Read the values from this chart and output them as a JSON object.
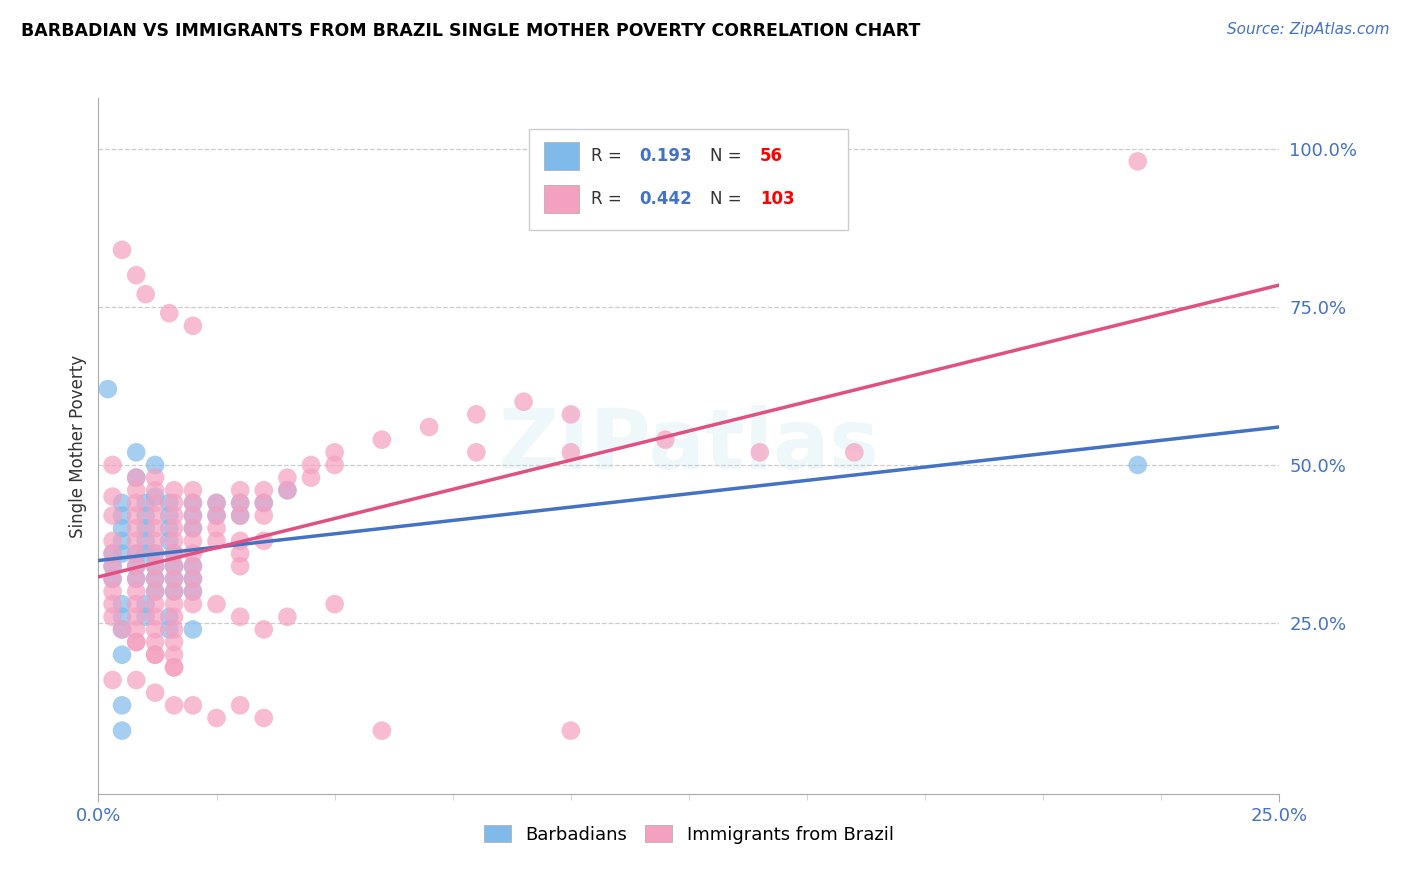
{
  "title": "BARBADIAN VS IMMIGRANTS FROM BRAZIL SINGLE MOTHER POVERTY CORRELATION CHART",
  "source": "Source: ZipAtlas.com",
  "ylabel": "Single Mother Poverty",
  "xlim": [
    0.0,
    0.25
  ],
  "ylim": [
    -0.02,
    1.08
  ],
  "ytick_positions": [
    0.25,
    0.5,
    0.75,
    1.0
  ],
  "ytick_labels": [
    "25.0%",
    "50.0%",
    "75.0%",
    "100.0%"
  ],
  "barbadians_color": "#7FBAEB",
  "barbadians_edge": "#7FBAEB",
  "brazil_color": "#F4A0C0",
  "brazil_edge": "#F4A0C0",
  "barbadians_line_color": "#4472C4",
  "brazil_line_color": "#E05080",
  "barbadians_R": 0.193,
  "barbadians_N": 56,
  "brazil_R": 0.442,
  "brazil_N": 103,
  "watermark": "ZIPatlas",
  "background_color": "#ffffff",
  "legend_R_color": "#4472C4",
  "legend_N_color": "#FF0000",
  "legend_text_color": "#333333",
  "barbadians_scatter": [
    [
      0.002,
      0.62
    ],
    [
      0.008,
      0.52
    ],
    [
      0.008,
      0.48
    ],
    [
      0.012,
      0.5
    ],
    [
      0.012,
      0.45
    ],
    [
      0.005,
      0.44
    ],
    [
      0.005,
      0.42
    ],
    [
      0.005,
      0.4
    ],
    [
      0.005,
      0.38
    ],
    [
      0.005,
      0.36
    ],
    [
      0.01,
      0.44
    ],
    [
      0.01,
      0.42
    ],
    [
      0.01,
      0.4
    ],
    [
      0.01,
      0.38
    ],
    [
      0.01,
      0.36
    ],
    [
      0.015,
      0.44
    ],
    [
      0.015,
      0.42
    ],
    [
      0.015,
      0.4
    ],
    [
      0.015,
      0.38
    ],
    [
      0.02,
      0.44
    ],
    [
      0.02,
      0.42
    ],
    [
      0.02,
      0.4
    ],
    [
      0.025,
      0.44
    ],
    [
      0.025,
      0.42
    ],
    [
      0.03,
      0.44
    ],
    [
      0.03,
      0.42
    ],
    [
      0.035,
      0.44
    ],
    [
      0.04,
      0.46
    ],
    [
      0.003,
      0.36
    ],
    [
      0.003,
      0.34
    ],
    [
      0.003,
      0.32
    ],
    [
      0.008,
      0.36
    ],
    [
      0.008,
      0.34
    ],
    [
      0.008,
      0.32
    ],
    [
      0.012,
      0.36
    ],
    [
      0.012,
      0.34
    ],
    [
      0.012,
      0.32
    ],
    [
      0.012,
      0.3
    ],
    [
      0.016,
      0.36
    ],
    [
      0.016,
      0.34
    ],
    [
      0.016,
      0.32
    ],
    [
      0.016,
      0.3
    ],
    [
      0.02,
      0.34
    ],
    [
      0.02,
      0.32
    ],
    [
      0.02,
      0.3
    ],
    [
      0.005,
      0.28
    ],
    [
      0.005,
      0.26
    ],
    [
      0.005,
      0.24
    ],
    [
      0.01,
      0.28
    ],
    [
      0.01,
      0.26
    ],
    [
      0.015,
      0.26
    ],
    [
      0.015,
      0.24
    ],
    [
      0.02,
      0.24
    ],
    [
      0.005,
      0.2
    ],
    [
      0.005,
      0.12
    ],
    [
      0.005,
      0.08
    ],
    [
      0.22,
      0.5
    ]
  ],
  "brazil_scatter": [
    [
      0.003,
      0.5
    ],
    [
      0.003,
      0.45
    ],
    [
      0.003,
      0.42
    ],
    [
      0.003,
      0.38
    ],
    [
      0.003,
      0.36
    ],
    [
      0.003,
      0.34
    ],
    [
      0.003,
      0.32
    ],
    [
      0.003,
      0.3
    ],
    [
      0.003,
      0.28
    ],
    [
      0.008,
      0.48
    ],
    [
      0.008,
      0.46
    ],
    [
      0.008,
      0.44
    ],
    [
      0.008,
      0.42
    ],
    [
      0.008,
      0.4
    ],
    [
      0.008,
      0.38
    ],
    [
      0.008,
      0.36
    ],
    [
      0.008,
      0.34
    ],
    [
      0.008,
      0.32
    ],
    [
      0.008,
      0.3
    ],
    [
      0.008,
      0.28
    ],
    [
      0.008,
      0.26
    ],
    [
      0.008,
      0.24
    ],
    [
      0.008,
      0.22
    ],
    [
      0.012,
      0.48
    ],
    [
      0.012,
      0.46
    ],
    [
      0.012,
      0.44
    ],
    [
      0.012,
      0.42
    ],
    [
      0.012,
      0.4
    ],
    [
      0.012,
      0.38
    ],
    [
      0.012,
      0.36
    ],
    [
      0.012,
      0.34
    ],
    [
      0.012,
      0.32
    ],
    [
      0.012,
      0.3
    ],
    [
      0.012,
      0.28
    ],
    [
      0.012,
      0.26
    ],
    [
      0.012,
      0.24
    ],
    [
      0.012,
      0.22
    ],
    [
      0.012,
      0.2
    ],
    [
      0.016,
      0.46
    ],
    [
      0.016,
      0.44
    ],
    [
      0.016,
      0.42
    ],
    [
      0.016,
      0.4
    ],
    [
      0.016,
      0.38
    ],
    [
      0.016,
      0.36
    ],
    [
      0.016,
      0.34
    ],
    [
      0.016,
      0.32
    ],
    [
      0.016,
      0.3
    ],
    [
      0.016,
      0.28
    ],
    [
      0.016,
      0.26
    ],
    [
      0.016,
      0.24
    ],
    [
      0.016,
      0.22
    ],
    [
      0.016,
      0.2
    ],
    [
      0.016,
      0.18
    ],
    [
      0.02,
      0.46
    ],
    [
      0.02,
      0.44
    ],
    [
      0.02,
      0.42
    ],
    [
      0.02,
      0.4
    ],
    [
      0.02,
      0.38
    ],
    [
      0.02,
      0.36
    ],
    [
      0.02,
      0.34
    ],
    [
      0.02,
      0.32
    ],
    [
      0.02,
      0.3
    ],
    [
      0.02,
      0.28
    ],
    [
      0.025,
      0.44
    ],
    [
      0.025,
      0.42
    ],
    [
      0.025,
      0.4
    ],
    [
      0.025,
      0.38
    ],
    [
      0.03,
      0.46
    ],
    [
      0.03,
      0.44
    ],
    [
      0.03,
      0.42
    ],
    [
      0.03,
      0.38
    ],
    [
      0.03,
      0.36
    ],
    [
      0.03,
      0.34
    ],
    [
      0.035,
      0.46
    ],
    [
      0.035,
      0.44
    ],
    [
      0.035,
      0.42
    ],
    [
      0.035,
      0.38
    ],
    [
      0.04,
      0.48
    ],
    [
      0.04,
      0.46
    ],
    [
      0.045,
      0.5
    ],
    [
      0.045,
      0.48
    ],
    [
      0.05,
      0.52
    ],
    [
      0.05,
      0.5
    ],
    [
      0.06,
      0.54
    ],
    [
      0.07,
      0.56
    ],
    [
      0.08,
      0.58
    ],
    [
      0.09,
      0.6
    ],
    [
      0.1,
      0.58
    ],
    [
      0.005,
      0.84
    ],
    [
      0.008,
      0.8
    ],
    [
      0.01,
      0.77
    ],
    [
      0.015,
      0.74
    ],
    [
      0.02,
      0.72
    ],
    [
      0.08,
      0.52
    ],
    [
      0.1,
      0.52
    ],
    [
      0.12,
      0.54
    ],
    [
      0.14,
      0.52
    ],
    [
      0.16,
      0.52
    ],
    [
      0.003,
      0.26
    ],
    [
      0.005,
      0.24
    ],
    [
      0.008,
      0.22
    ],
    [
      0.012,
      0.2
    ],
    [
      0.016,
      0.18
    ],
    [
      0.025,
      0.28
    ],
    [
      0.03,
      0.26
    ],
    [
      0.035,
      0.24
    ],
    [
      0.04,
      0.26
    ],
    [
      0.05,
      0.28
    ],
    [
      0.003,
      0.16
    ],
    [
      0.008,
      0.16
    ],
    [
      0.012,
      0.14
    ],
    [
      0.016,
      0.12
    ],
    [
      0.02,
      0.12
    ],
    [
      0.025,
      0.1
    ],
    [
      0.03,
      0.12
    ],
    [
      0.035,
      0.1
    ],
    [
      0.06,
      0.08
    ],
    [
      0.1,
      0.08
    ],
    [
      0.22,
      0.98
    ]
  ]
}
